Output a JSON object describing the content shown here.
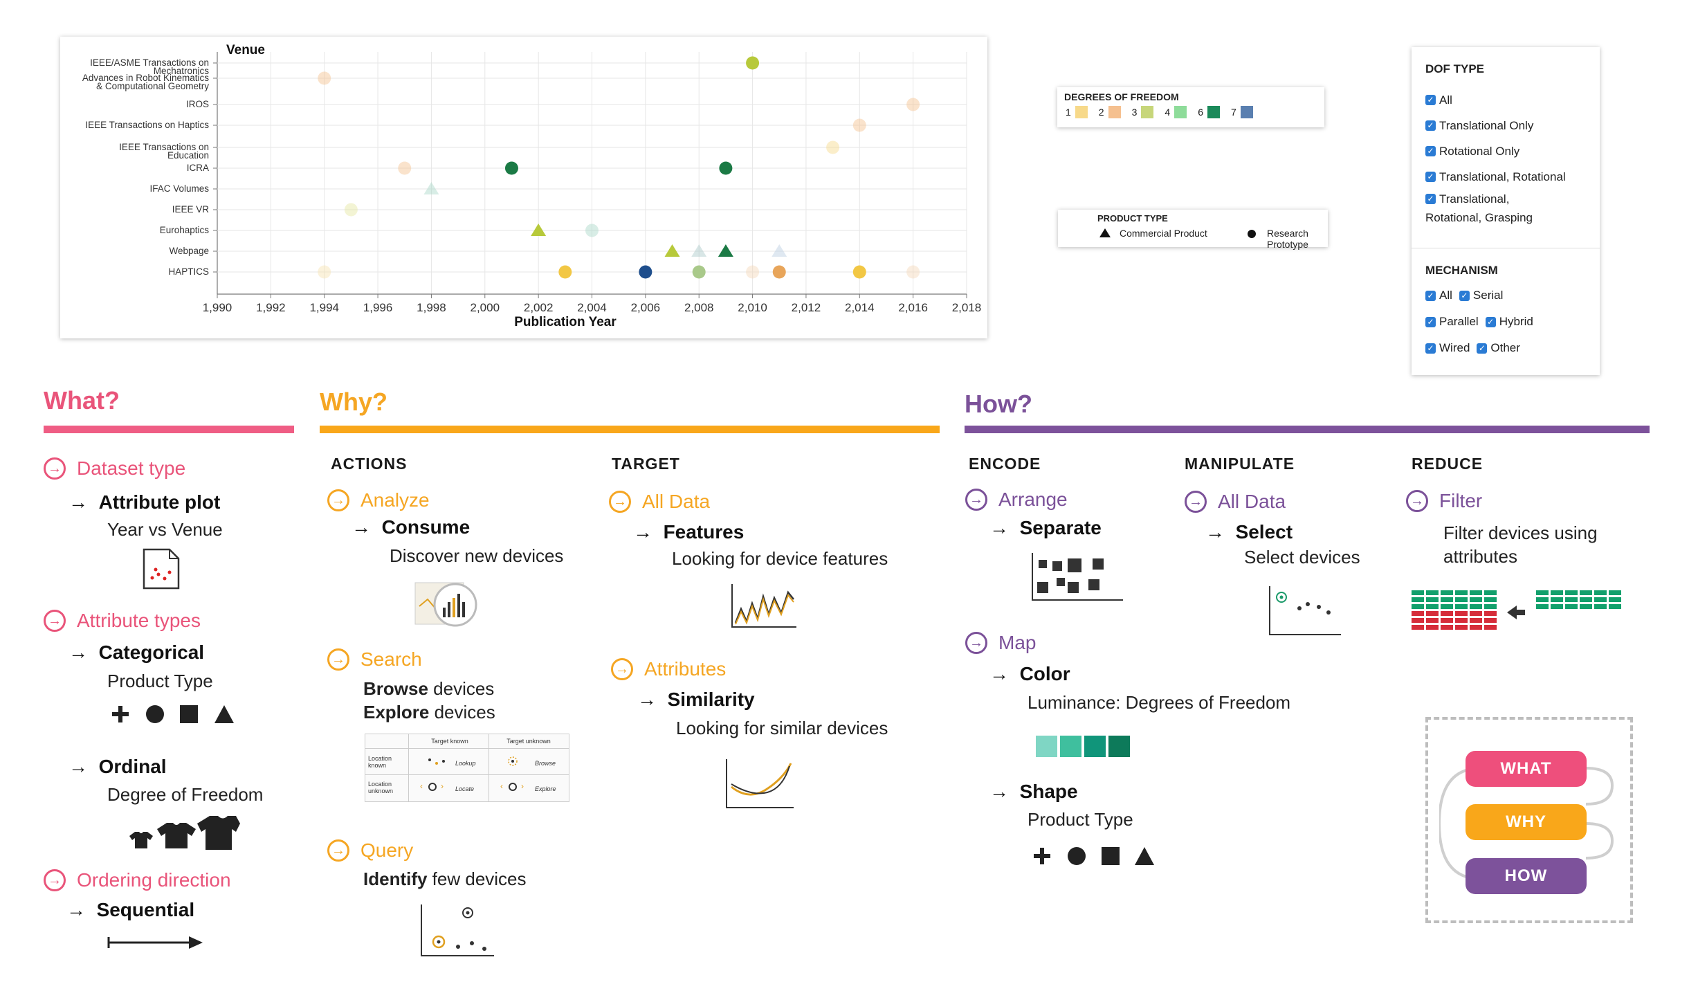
{
  "colors": {
    "what": "#e9547a",
    "why": "#f5a623",
    "how": "#7b5199",
    "dof": [
      "#f7d98a",
      "#f5c08f",
      "#c7d67a",
      "#8edc9a",
      "#1b8a5a",
      "#5a7fb0"
    ]
  },
  "chart_data": {
    "type": "scatter",
    "ylabel": "Venue",
    "xlabel": "Publication Year",
    "xlim": [
      1990,
      2018
    ],
    "x_ticks": [
      "1,990",
      "1,992",
      "1,994",
      "1,996",
      "1,998",
      "2,000",
      "2,002",
      "2,004",
      "2,006",
      "2,008",
      "2,010",
      "2,012",
      "2,014",
      "2,016",
      "2,018"
    ],
    "venues": [
      "IEEE/ASME Transactions on Mechatronics",
      "Advances in Robot Kinematics & Computational Geometry",
      "IROS",
      "IEEE Transactions on Haptics",
      "IEEE Transactions on Education",
      "ICRA",
      "IFAC Volumes",
      "IEEE VR",
      "Eurohaptics",
      "Webpage",
      "HAPTICS"
    ],
    "points": [
      {
        "year": 2010,
        "venue": 0,
        "color": "#b7c93a",
        "shape": "circle",
        "faded": false
      },
      {
        "year": 1994,
        "venue": 1,
        "color": "#f5c08f",
        "shape": "circle",
        "faded": true
      },
      {
        "year": 2016,
        "venue": 2,
        "color": "#f5c08f",
        "shape": "circle",
        "faded": true
      },
      {
        "year": 2014,
        "venue": 3,
        "color": "#f5c08f",
        "shape": "circle",
        "faded": true
      },
      {
        "year": 2013,
        "venue": 4,
        "color": "#f7d98a",
        "shape": "circle",
        "faded": true
      },
      {
        "year": 1997,
        "venue": 5,
        "color": "#f5c08f",
        "shape": "circle",
        "faded": true
      },
      {
        "year": 2001,
        "venue": 5,
        "color": "#1b7a45",
        "shape": "circle",
        "faded": false
      },
      {
        "year": 2009,
        "venue": 5,
        "color": "#1b7a45",
        "shape": "circle",
        "faded": false
      },
      {
        "year": 1998,
        "venue": 6,
        "color": "#a9d8c8",
        "shape": "triangle",
        "faded": true
      },
      {
        "year": 1995,
        "venue": 7,
        "color": "#e5e7a0",
        "shape": "circle",
        "faded": true
      },
      {
        "year": 2002,
        "venue": 8,
        "color": "#b7c93a",
        "shape": "triangle",
        "faded": false
      },
      {
        "year": 2004,
        "venue": 8,
        "color": "#a9d8c8",
        "shape": "circle",
        "faded": true
      },
      {
        "year": 2007,
        "venue": 9,
        "color": "#b7c93a",
        "shape": "triangle",
        "faded": false
      },
      {
        "year": 2008,
        "venue": 9,
        "color": "#a9c8c8",
        "shape": "triangle",
        "faded": true
      },
      {
        "year": 2009,
        "venue": 9,
        "color": "#1b7a45",
        "shape": "triangle",
        "faded": false
      },
      {
        "year": 2011,
        "venue": 9,
        "color": "#b8cde0",
        "shape": "triangle",
        "faded": true
      },
      {
        "year": 1994,
        "venue": 10,
        "color": "#f7e3b0",
        "shape": "circle",
        "faded": true
      },
      {
        "year": 2003,
        "venue": 10,
        "color": "#f2c744",
        "shape": "circle",
        "faded": false
      },
      {
        "year": 2006,
        "venue": 10,
        "color": "#1e4e8c",
        "shape": "circle",
        "faded": false
      },
      {
        "year": 2008,
        "venue": 10,
        "color": "#a9c98a",
        "shape": "circle",
        "faded": false
      },
      {
        "year": 2010,
        "venue": 10,
        "color": "#f5d8b8",
        "shape": "circle",
        "faded": true
      },
      {
        "year": 2011,
        "venue": 10,
        "color": "#e8a55a",
        "shape": "circle",
        "faded": false
      },
      {
        "year": 2014,
        "venue": 10,
        "color": "#f2c744",
        "shape": "circle",
        "faded": false
      },
      {
        "year": 2016,
        "venue": 10,
        "color": "#f5d8b8",
        "shape": "circle",
        "faded": true
      }
    ]
  },
  "dof_legend": {
    "title": "DEGREES OF FREEDOM",
    "items": [
      "1",
      "2",
      "3",
      "4",
      "6",
      "7"
    ]
  },
  "product_legend": {
    "title": "PRODUCT TYPE",
    "commercial": "Commercial Product",
    "research": "Research Prototype"
  },
  "filters": {
    "dof_title": "DOF TYPE",
    "dof_items": [
      "All",
      "Translational Only",
      "Rotational Only",
      "Translational, Rotational"
    ],
    "dof_last_line1": "Translational,",
    "dof_last_line2": "Rotational, Grasping",
    "mech_title": "MECHANISM",
    "mech_rows": [
      [
        "All",
        "Serial"
      ],
      [
        "Parallel",
        "Hybrid"
      ],
      [
        "Wired",
        "Other"
      ]
    ]
  },
  "what": {
    "title": "What?",
    "dataset_type": "Dataset type",
    "attribute_plot": "Attribute plot",
    "year_vs_venue": "Year vs Venue",
    "attribute_types": "Attribute types",
    "categorical": "Categorical",
    "product_type": "Product Type",
    "ordinal": "Ordinal",
    "degree_of_freedom": "Degree of Freedom",
    "ordering_direction": "Ordering direction",
    "sequential": "Sequential"
  },
  "why": {
    "title": "Why?",
    "actions": "ACTIONS",
    "target": "TARGET",
    "analyze": "Analyze",
    "consume": "Consume",
    "discover": "Discover new devices",
    "search": "Search",
    "browse_b": "Browse",
    "browse_r": " devices",
    "explore_b": "Explore",
    "explore_r": " devices",
    "query": "Query",
    "identify_b": "Identify",
    "identify_r": " few devices",
    "all_data": "All Data",
    "features": "Features",
    "features_desc": "Looking for device features",
    "attributes": "Attributes",
    "similarity": "Similarity",
    "similarity_desc": "Looking for similar devices",
    "search_table": {
      "col1": "Target known",
      "col2": "Target unknown",
      "row1": "Location known",
      "row2": "Location unknown",
      "lookup": "Lookup",
      "browse": "Browse",
      "locate": "Locate",
      "explore": "Explore"
    }
  },
  "how": {
    "title": "How?",
    "encode": "ENCODE",
    "manipulate": "MANIPULATE",
    "reduce": "REDUCE",
    "arrange": "Arrange",
    "separate": "Separate",
    "map": "Map",
    "color": "Color",
    "color_desc": "Luminance: Degrees of Freedom",
    "shape": "Shape",
    "shape_desc": "Product Type",
    "all_data": "All Data",
    "select": "Select",
    "select_desc": "Select devices",
    "filter": "Filter",
    "filter_desc1": "Filter devices using",
    "filter_desc2": "attributes"
  },
  "cycle": {
    "what": "WHAT",
    "why": "WHY",
    "how": "HOW"
  }
}
